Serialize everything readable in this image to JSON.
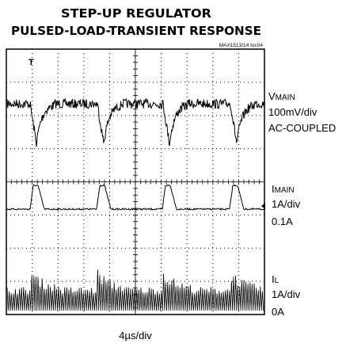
{
  "title": [
    "STEP-UP REGULATOR",
    "PULSED-LOAD-TRANSIENT RESPONSE"
  ],
  "figure_id": "MAX1513/14 toc04",
  "traces": [
    {
      "name": "V",
      "sub": "MAIN",
      "scale": "100mV/div",
      "note": "AC-COUPLED"
    },
    {
      "name": "I",
      "sub": "MAIN",
      "scale": "1A/div",
      "note": "0.1A"
    },
    {
      "name": "I",
      "sub": "L",
      "scale": "1A/div",
      "note": "0A"
    }
  ],
  "timebase": "4µs/div"
}
